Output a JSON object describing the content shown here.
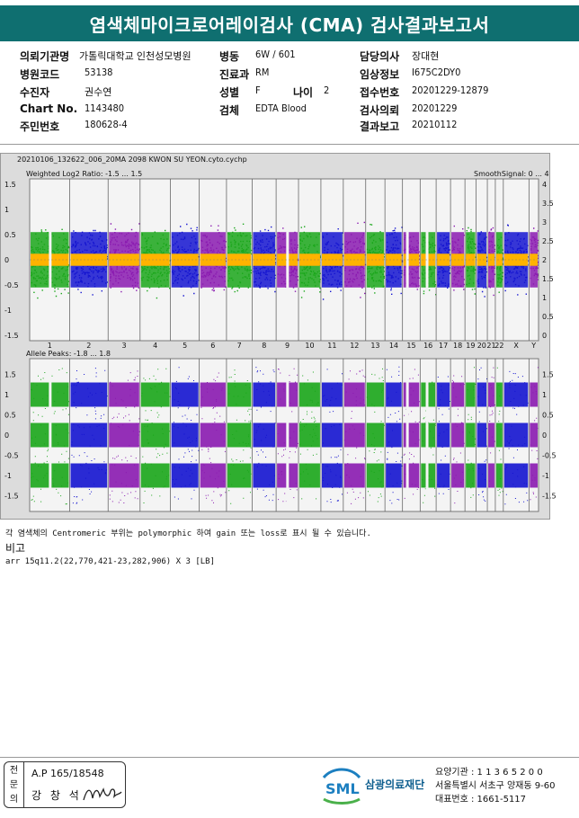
{
  "title": "염색체마이크로어레이검사 (CMA) 검사결과보고서",
  "patient": {
    "col1": [
      {
        "label": "의뢰기관명",
        "value": "가톨릭대학교 인천성모병원"
      },
      {
        "label": "병원코드",
        "value": "53138"
      },
      {
        "label": "수진자",
        "value": "권수연"
      },
      {
        "label": "Chart No.",
        "value": "1143480"
      },
      {
        "label": "주민번호",
        "value": "180628-4"
      }
    ],
    "col2": [
      {
        "label": "병동",
        "value": "6W / 601"
      },
      {
        "label": "진료과",
        "value": "RM"
      },
      {
        "label": "성별",
        "value": "F"
      },
      {
        "label": "검체",
        "value": "EDTA Blood"
      }
    ],
    "age": {
      "label": "나이",
      "value": "2"
    },
    "col3": [
      {
        "label": "담당의사",
        "value": "장대현"
      },
      {
        "label": "임상정보",
        "value": "I675C2DY0"
      },
      {
        "label": "접수번호",
        "value": "20201229-12879"
      },
      {
        "label": "검사의뢰",
        "value": "20201229"
      },
      {
        "label": "결과보고",
        "value": "20210112"
      }
    ]
  },
  "plot": {
    "file": "20210106_132622_006_20MA 2098 KWON SU YEON.cyto.cychp",
    "top_label": "Weighted Log2 Ratio: -1.5 ... 1.5",
    "top_right_label": "SmoothSignal: 0 ... 4",
    "bottom_label": "Allele Peaks: -1.8 ... 1.8",
    "top_left_ticks": [
      "1.5",
      "1",
      "0.5",
      "0",
      "-0.5",
      "-1",
      "-1.5"
    ],
    "top_right_ticks": [
      "4",
      "3.5",
      "3",
      "2.5",
      "2",
      "1.5",
      "1",
      "0.5",
      "0"
    ],
    "bottom_left_ticks": [
      "1.5",
      "1",
      "0.5",
      "0",
      "-0.5",
      "-1",
      "-1.5"
    ],
    "bottom_right_ticks": [
      "1.5",
      "1",
      "0.5",
      "0",
      "-0.5",
      "-1",
      "-1.5"
    ],
    "chromosomes": [
      "1",
      "2",
      "3",
      "4",
      "5",
      "6",
      "7",
      "8",
      "9",
      "10",
      "11",
      "12",
      "13",
      "14",
      "15",
      "16",
      "17",
      "18",
      "19",
      "20",
      "21",
      "22",
      "X",
      "Y"
    ],
    "colors": {
      "green": "#1aa61a",
      "blue": "#1414d0",
      "purple": "#8a1ab0",
      "orange": "#ffb300"
    }
  },
  "note": "각 염색체의 Centromeric 부위는 polymorphic 하여 gain 또는 loss로 표시 될 수 있습니다.",
  "remarks": {
    "title": "비고",
    "text": "arr 15q11.2(22,770,421-23,282,906) X 3 [LB]"
  },
  "signature": {
    "side": [
      "전",
      "문",
      "의"
    ],
    "ap": "A.P 165/18548",
    "name": "강 창 석"
  },
  "org": {
    "logo": "SML",
    "name": "삼광의료재단",
    "line1": "요양기관 : 1 1 3 6 5 2 0 0",
    "line2": "서울특별시 서초구 양재동 9-60",
    "line3": "대표번호 : 1661-5117"
  }
}
